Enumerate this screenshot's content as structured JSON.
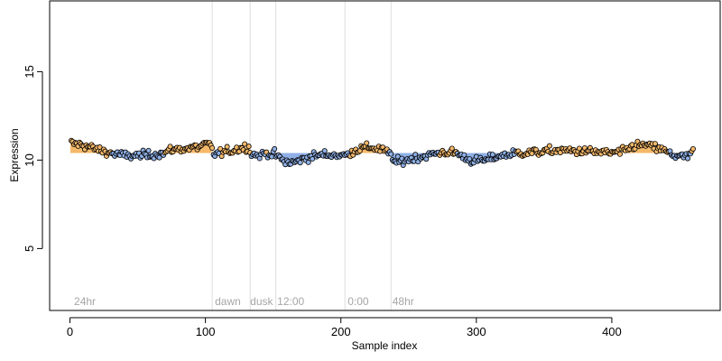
{
  "chart_data": {
    "type": "scatter",
    "xlabel": "Sample index",
    "ylabel": "Expression",
    "xlim": [
      -15,
      480
    ],
    "ylim": [
      1.5,
      19.0
    ],
    "x_ticks": [
      0,
      100,
      200,
      300,
      400
    ],
    "y_ticks": [
      5,
      10,
      15
    ],
    "baseline": 10.4,
    "grid": false,
    "legend": "none",
    "colors": {
      "above_baseline": "#f5b96b",
      "below_baseline": "#8fb0e6",
      "point_edge": "#000000",
      "segment_line": "#dddddd",
      "annotation_text": "#a6a6a6"
    },
    "segment_lines": [
      105,
      133,
      152,
      203,
      237
    ],
    "annotations": [
      {
        "x": 3,
        "text": "24hr"
      },
      {
        "x": 107,
        "text": "dawn"
      },
      {
        "x": 133,
        "text": "dusk"
      },
      {
        "x": 153,
        "text": "12:00"
      },
      {
        "x": 205,
        "text": "0:00"
      },
      {
        "x": 238,
        "text": "48hr"
      }
    ],
    "series": [
      {
        "profile": [
          [
            1,
            10.95
          ],
          [
            10,
            10.85
          ],
          [
            20,
            10.6
          ],
          [
            30,
            10.4
          ],
          [
            40,
            10.25
          ],
          [
            50,
            10.25
          ],
          [
            60,
            10.3
          ],
          [
            70,
            10.4
          ],
          [
            75,
            10.6
          ],
          [
            85,
            10.65
          ],
          [
            95,
            10.75
          ],
          [
            100,
            10.9
          ],
          [
            104,
            10.8
          ],
          [
            106,
            10.35
          ],
          [
            115,
            10.45
          ],
          [
            125,
            10.65
          ],
          [
            132,
            10.75
          ],
          [
            134,
            10.35
          ],
          [
            140,
            10.25
          ],
          [
            145,
            10.4
          ],
          [
            152,
            10.3
          ],
          [
            158,
            9.9
          ],
          [
            165,
            9.85
          ],
          [
            175,
            10.15
          ],
          [
            185,
            10.3
          ],
          [
            195,
            10.3
          ],
          [
            203,
            10.25
          ],
          [
            210,
            10.55
          ],
          [
            220,
            10.75
          ],
          [
            230,
            10.6
          ],
          [
            237,
            10.3
          ],
          [
            240,
            9.85
          ],
          [
            248,
            10.0
          ],
          [
            260,
            10.2
          ],
          [
            275,
            10.45
          ],
          [
            285,
            10.4
          ],
          [
            295,
            10.0
          ],
          [
            305,
            9.95
          ],
          [
            315,
            10.2
          ],
          [
            330,
            10.4
          ],
          [
            345,
            10.45
          ],
          [
            360,
            10.55
          ],
          [
            380,
            10.5
          ],
          [
            400,
            10.4
          ],
          [
            410,
            10.5
          ],
          [
            415,
            10.8
          ],
          [
            425,
            10.85
          ],
          [
            435,
            10.65
          ],
          [
            445,
            10.3
          ],
          [
            455,
            10.15
          ],
          [
            460,
            10.5
          ]
        ],
        "n_points": 460,
        "noise_sd": 0.27
      }
    ]
  }
}
